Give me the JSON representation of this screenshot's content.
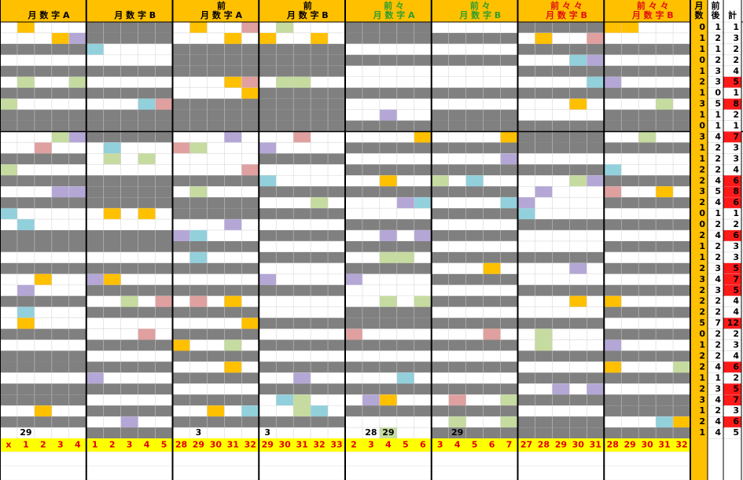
{
  "blocks": [
    {
      "label": "月 数 字 A",
      "color": "#000000",
      "last_row": [
        null,
        29,
        null,
        null,
        null
      ],
      "footer": [
        "x",
        1,
        2,
        3,
        4
      ]
    },
    {
      "label": "月 数 字 B",
      "color": "#000000",
      "last_row": [
        null,
        null,
        null,
        null,
        null
      ],
      "footer": [
        1,
        2,
        3,
        4,
        5
      ]
    },
    {
      "prefix": "前",
      "label": "月 数 字 A",
      "color": "#000000",
      "last_row": [
        null,
        3,
        null,
        null,
        null
      ],
      "footer": [
        28,
        29,
        30,
        31,
        32
      ]
    },
    {
      "prefix": "前",
      "label": "月 数 字 B",
      "color": "#000000",
      "last_row": [
        3,
        null,
        null,
        null,
        null
      ],
      "footer": [
        29,
        30,
        31,
        32,
        33
      ]
    },
    {
      "prefix": "前 々",
      "label": "月 数 字 A",
      "color": "#2e9e2e",
      "last_row": [
        null,
        28,
        29,
        null,
        null
      ],
      "footer": [
        2,
        3,
        4,
        5,
        6
      ]
    },
    {
      "prefix": "前 々",
      "label": "月 数 字 B",
      "color": "#2e9e2e",
      "last_row": [
        null,
        29,
        null,
        null,
        null
      ],
      "footer": [
        3,
        4,
        5,
        6,
        7
      ]
    },
    {
      "prefix": "前 々 々",
      "label": "月 数 字 B",
      "color": "#e01010",
      "last_row": [
        null,
        null,
        null,
        null,
        null
      ],
      "footer": [
        27,
        28,
        29,
        30,
        31
      ]
    },
    {
      "prefix": "前 々 々",
      "label": "月 数 字 B",
      "color": "#e01010",
      "last_row": [
        null,
        null,
        null,
        null,
        null
      ],
      "footer": [
        28,
        29,
        30,
        31,
        32
      ]
    }
  ],
  "totals": {
    "headers": [
      {
        "top": "月",
        "bottom": "数"
      },
      {
        "top": "前",
        "bottom": "後"
      },
      {
        "bottom": "計"
      }
    ],
    "rows": [
      [
        0,
        1,
        1
      ],
      [
        1,
        2,
        3
      ],
      [
        1,
        1,
        2
      ],
      [
        0,
        2,
        2
      ],
      [
        1,
        3,
        4
      ],
      [
        2,
        3,
        5
      ],
      [
        1,
        0,
        1
      ],
      [
        3,
        5,
        8
      ],
      [
        1,
        1,
        2
      ],
      [
        0,
        1,
        1
      ],
      [
        3,
        4,
        7
      ],
      [
        1,
        2,
        3
      ],
      [
        1,
        2,
        3
      ],
      [
        2,
        2,
        4
      ],
      [
        2,
        4,
        6
      ],
      [
        3,
        5,
        8
      ],
      [
        2,
        4,
        6
      ],
      [
        0,
        1,
        1
      ],
      [
        0,
        2,
        2
      ],
      [
        2,
        4,
        6
      ],
      [
        1,
        2,
        3
      ],
      [
        1,
        2,
        3
      ],
      [
        2,
        3,
        5
      ],
      [
        3,
        4,
        7
      ],
      [
        2,
        3,
        5
      ],
      [
        2,
        2,
        4
      ],
      [
        2,
        2,
        4
      ],
      [
        5,
        7,
        12
      ],
      [
        0,
        2,
        2
      ],
      [
        1,
        2,
        3
      ],
      [
        2,
        2,
        4
      ],
      [
        2,
        4,
        6
      ],
      [
        1,
        1,
        2
      ],
      [
        2,
        3,
        5
      ],
      [
        3,
        4,
        7
      ],
      [
        1,
        2,
        3
      ],
      [
        2,
        4,
        6
      ],
      [
        1,
        4,
        5
      ]
    ],
    "highlight": [
      false,
      false,
      false,
      false,
      false,
      true,
      false,
      true,
      false,
      false,
      true,
      false,
      false,
      false,
      true,
      true,
      true,
      false,
      false,
      true,
      false,
      false,
      true,
      true,
      true,
      false,
      false,
      true,
      false,
      false,
      false,
      true,
      false,
      true,
      true,
      false,
      true,
      false
    ]
  }
}
